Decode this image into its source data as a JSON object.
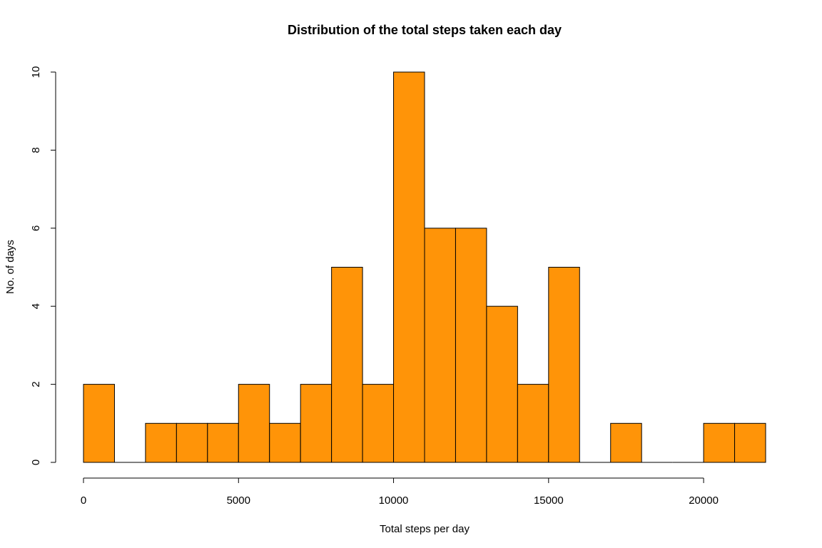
{
  "chart_data": {
    "type": "bar",
    "title": "Distribution of the total steps taken each day",
    "xlabel": "Total steps per day",
    "ylabel": "No. of days",
    "bin_width": 1000,
    "bins_start": [
      0,
      1000,
      2000,
      3000,
      4000,
      5000,
      6000,
      7000,
      8000,
      9000,
      10000,
      11000,
      12000,
      13000,
      14000,
      15000,
      16000,
      17000,
      18000,
      19000,
      20000,
      21000
    ],
    "values": [
      2,
      0,
      1,
      1,
      1,
      2,
      1,
      2,
      5,
      2,
      10,
      6,
      6,
      4,
      2,
      5,
      0,
      1,
      0,
      0,
      1,
      1
    ],
    "xlim": [
      0,
      22000
    ],
    "ylim": [
      0,
      10
    ],
    "x_ticks": [
      0,
      5000,
      10000,
      15000,
      20000
    ],
    "x_tick_labels": [
      "0",
      "5000",
      "10000",
      "15000",
      "20000"
    ],
    "y_ticks": [
      0,
      2,
      4,
      6,
      8,
      10
    ],
    "y_tick_labels": [
      "0",
      "2",
      "4",
      "6",
      "8",
      "10"
    ],
    "bar_color": "#FF9408",
    "grid": false,
    "legend": "none"
  }
}
